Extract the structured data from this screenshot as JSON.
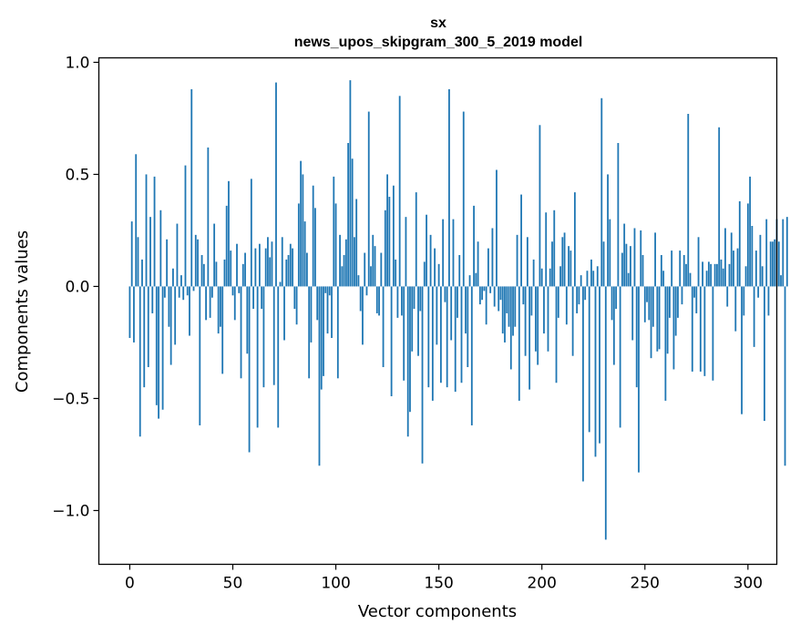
{
  "chart_data": {
    "type": "bar",
    "title": "sx",
    "subtitle": "news_upos_skipgram_300_5_2019 model",
    "xlabel": "Vector components",
    "ylabel": "Components values",
    "xlim": [
      -15,
      314
    ],
    "ylim": [
      -1.24,
      1.02
    ],
    "bar_color": "#1f77b4",
    "xticks": [
      0,
      50,
      100,
      150,
      200,
      250,
      300
    ],
    "xtick_labels": [
      "0",
      "50",
      "100",
      "150",
      "200",
      "250",
      "300"
    ],
    "yticks": [
      -1.0,
      -0.5,
      0.0,
      0.5,
      1.0
    ],
    "ytick_labels": [
      "−1.0",
      "−0.5",
      "0.0",
      "0.5",
      "1.0"
    ],
    "values": [
      -0.23,
      0.29,
      -0.25,
      0.59,
      0.22,
      -0.67,
      0.12,
      -0.45,
      0.5,
      -0.36,
      0.31,
      -0.12,
      0.49,
      -0.53,
      -0.59,
      0.34,
      -0.55,
      -0.05,
      0.21,
      -0.18,
      -0.35,
      0.08,
      -0.26,
      0.28,
      -0.05,
      0.05,
      -0.06,
      0.54,
      -0.04,
      -0.22,
      0.88,
      -0.02,
      0.23,
      0.21,
      -0.62,
      0.14,
      0.1,
      -0.15,
      0.62,
      -0.14,
      -0.05,
      0.28,
      0.11,
      -0.21,
      -0.18,
      -0.39,
      0.12,
      0.36,
      0.47,
      0.16,
      -0.04,
      -0.15,
      0.19,
      -0.03,
      -0.41,
      0.1,
      0.15,
      -0.3,
      -0.74,
      0.48,
      -0.1,
      0.17,
      -0.63,
      0.19,
      -0.1,
      -0.45,
      0.17,
      0.22,
      0.13,
      0.2,
      -0.44,
      0.91,
      -0.63,
      0.02,
      0.22,
      -0.24,
      0.12,
      0.14,
      0.19,
      0.17,
      -0.1,
      -0.17,
      0.37,
      0.56,
      0.5,
      0.29,
      0.15,
      -0.41,
      -0.25,
      0.45,
      0.35,
      -0.15,
      -0.8,
      -0.46,
      -0.4,
      -0.03,
      -0.21,
      -0.04,
      -0.23,
      0.49,
      0.37,
      -0.41,
      0.23,
      0.09,
      0.14,
      0.21,
      0.64,
      0.92,
      0.57,
      0.22,
      0.39,
      0.05,
      -0.11,
      -0.26,
      0.15,
      -0.04,
      0.78,
      0.09,
      0.23,
      0.18,
      -0.12,
      -0.13,
      0.15,
      -0.36,
      0.34,
      0.5,
      0.4,
      -0.49,
      0.45,
      0.12,
      -0.14,
      0.85,
      -0.13,
      -0.42,
      0.31,
      -0.67,
      -0.56,
      -0.29,
      -0.1,
      0.42,
      -0.31,
      -0.11,
      -0.79,
      0.11,
      0.32,
      -0.45,
      0.23,
      -0.51,
      0.17,
      -0.26,
      0.1,
      -0.43,
      0.3,
      -0.07,
      -0.45,
      0.88,
      -0.24,
      0.3,
      -0.47,
      -0.14,
      0.14,
      -0.43,
      0.78,
      -0.21,
      -0.36,
      0.05,
      -0.62,
      0.36,
      0.06,
      0.2,
      -0.08,
      -0.06,
      -0.02,
      -0.17,
      0.17,
      -0.03,
      0.26,
      -0.09,
      0.52,
      -0.11,
      -0.06,
      -0.21,
      -0.25,
      -0.12,
      -0.18,
      -0.37,
      -0.22,
      -0.18,
      0.23,
      -0.51,
      0.41,
      -0.08,
      -0.31,
      0.22,
      -0.46,
      -0.13,
      0.12,
      -0.29,
      -0.35,
      0.72,
      0.08,
      -0.21,
      0.33,
      -0.29,
      0.08,
      0.2,
      0.34,
      -0.43,
      -0.14,
      0.09,
      0.22,
      0.24,
      -0.17,
      0.18,
      0.16,
      -0.31,
      0.42,
      -0.12,
      -0.08,
      0.05,
      -0.87,
      -0.06,
      0.07,
      -0.65,
      0.12,
      0.07,
      -0.76,
      0.09,
      -0.7,
      0.84,
      0.2,
      -1.13,
      0.5,
      0.3,
      -0.15,
      -0.35,
      -0.1,
      0.64,
      -0.63,
      0.15,
      0.28,
      0.19,
      0.06,
      0.18,
      -0.24,
      0.26,
      -0.45,
      -0.83,
      0.25,
      0.14,
      -0.16,
      -0.07,
      -0.15,
      -0.32,
      -0.18,
      0.24,
      -0.29,
      -0.28,
      0.14,
      0.07,
      -0.51,
      -0.3,
      -0.14,
      0.16,
      -0.37,
      -0.22,
      -0.14,
      0.16,
      -0.08,
      0.14,
      0.1,
      0.77,
      0.06,
      -0.38,
      -0.05,
      -0.12,
      0.22,
      -0.38,
      0.11,
      -0.4,
      0.07,
      0.11,
      0.1,
      -0.42,
      0.1,
      0.1,
      0.71,
      0.12,
      0.08,
      0.26,
      -0.09,
      0.1,
      0.24,
      0.16,
      -0.2,
      0.17,
      0.38,
      -0.57,
      -0.13,
      0.09,
      0.37,
      0.49,
      0.27,
      -0.27,
      0.16,
      -0.05,
      0.23,
      0.09,
      -0.6,
      0.3,
      -0.13,
      0.2,
      0.2,
      0.21,
      0.3,
      0.2,
      0.05,
      0.3,
      -0.8,
      0.31
    ]
  }
}
